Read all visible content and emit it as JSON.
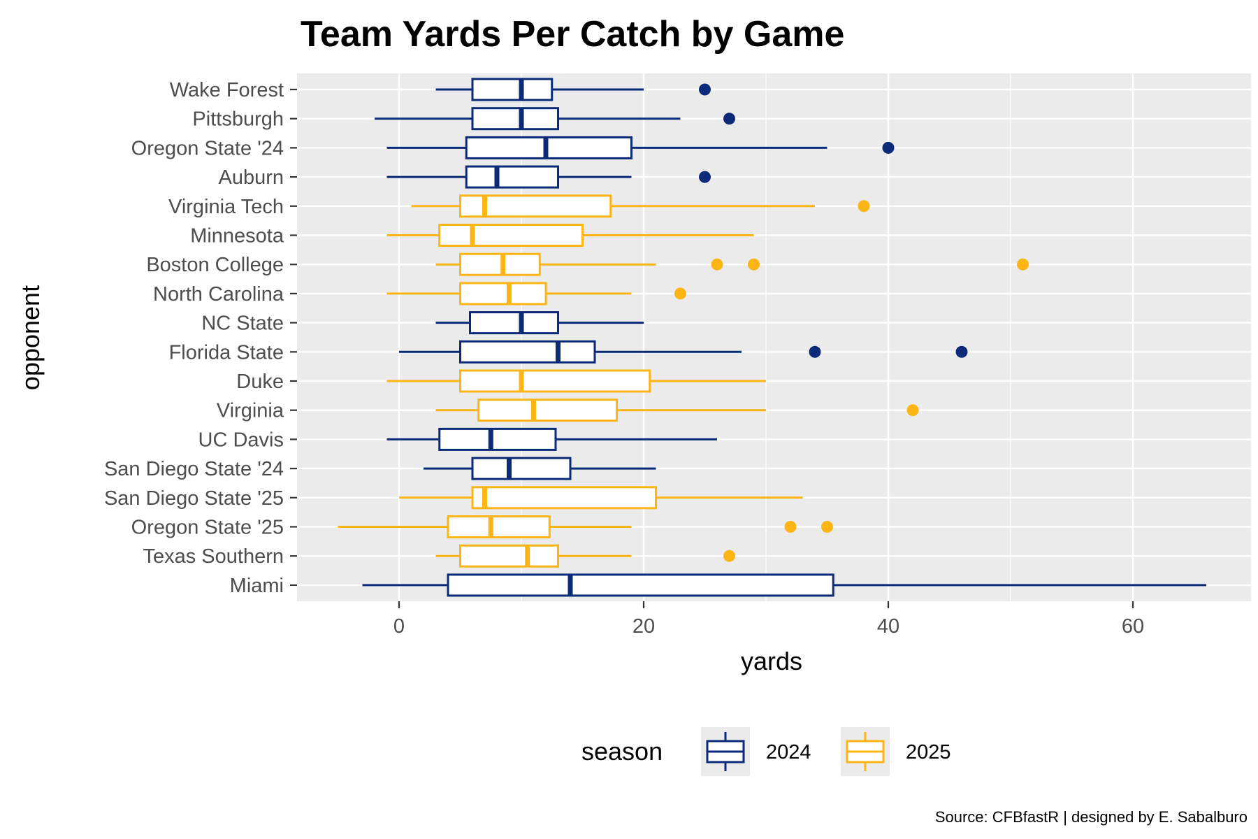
{
  "chart_data": {
    "type": "boxplot",
    "title": "Team Yards Per Catch by Game",
    "xlabel": "yards",
    "ylabel": "opponent",
    "xlim": [
      -8,
      69
    ],
    "xticks": [
      0,
      20,
      40,
      60
    ],
    "grid": true,
    "legend": {
      "title": "season",
      "position": "bottom",
      "entries": [
        {
          "name": "2024",
          "color": "#0b2a78"
        },
        {
          "name": "2025",
          "color": "#fdb515"
        }
      ]
    },
    "caption": "Source: CFBfastR | designed by E. Sabalburo",
    "boxes": [
      {
        "opponent": "Wake Forest",
        "season": "2024",
        "whisker_low": 3,
        "q1": 6,
        "median": 10,
        "q3": 12.5,
        "whisker_high": 20,
        "outliers": [
          25
        ]
      },
      {
        "opponent": "Pittsburgh",
        "season": "2024",
        "whisker_low": -2,
        "q1": 6,
        "median": 10,
        "q3": 13,
        "whisker_high": 23,
        "outliers": [
          27
        ]
      },
      {
        "opponent": "Oregon State '24",
        "season": "2024",
        "whisker_low": -1,
        "q1": 5.5,
        "median": 12,
        "q3": 19,
        "whisker_high": 35,
        "outliers": [
          40
        ]
      },
      {
        "opponent": "Auburn",
        "season": "2024",
        "whisker_low": -1,
        "q1": 5.5,
        "median": 8,
        "q3": 13,
        "whisker_high": 19,
        "outliers": [
          25
        ]
      },
      {
        "opponent": "Virginia Tech",
        "season": "2025",
        "whisker_low": 1,
        "q1": 5,
        "median": 7,
        "q3": 17.3,
        "whisker_high": 34,
        "outliers": [
          38
        ]
      },
      {
        "opponent": "Minnesota",
        "season": "2025",
        "whisker_low": -1,
        "q1": 3.3,
        "median": 6,
        "q3": 15,
        "whisker_high": 29,
        "outliers": []
      },
      {
        "opponent": "Boston College",
        "season": "2025",
        "whisker_low": 3,
        "q1": 5,
        "median": 8.5,
        "q3": 11.5,
        "whisker_high": 21,
        "outliers": [
          26,
          29,
          51
        ]
      },
      {
        "opponent": "North Carolina",
        "season": "2025",
        "whisker_low": -1,
        "q1": 5,
        "median": 9,
        "q3": 12,
        "whisker_high": 19,
        "outliers": [
          23
        ]
      },
      {
        "opponent": "NC State",
        "season": "2024",
        "whisker_low": 3,
        "q1": 5.8,
        "median": 10,
        "q3": 13,
        "whisker_high": 20,
        "outliers": []
      },
      {
        "opponent": "Florida State",
        "season": "2024",
        "whisker_low": 0,
        "q1": 5,
        "median": 13,
        "q3": 16,
        "whisker_high": 28,
        "outliers": [
          34,
          46
        ]
      },
      {
        "opponent": "Duke",
        "season": "2025",
        "whisker_low": -1,
        "q1": 5,
        "median": 10,
        "q3": 20.5,
        "whisker_high": 30,
        "outliers": []
      },
      {
        "opponent": "Virginia",
        "season": "2025",
        "whisker_low": 3,
        "q1": 6.5,
        "median": 11,
        "q3": 17.8,
        "whisker_high": 30,
        "outliers": [
          42
        ]
      },
      {
        "opponent": "UC Davis",
        "season": "2024",
        "whisker_low": -1,
        "q1": 3.3,
        "median": 7.5,
        "q3": 12.8,
        "whisker_high": 26,
        "outliers": []
      },
      {
        "opponent": "San Diego State '24",
        "season": "2024",
        "whisker_low": 2,
        "q1": 6,
        "median": 9,
        "q3": 14,
        "whisker_high": 21,
        "outliers": []
      },
      {
        "opponent": "San Diego State '25",
        "season": "2025",
        "whisker_low": 0,
        "q1": 6,
        "median": 7,
        "q3": 21,
        "whisker_high": 33,
        "outliers": []
      },
      {
        "opponent": "Oregon State '25",
        "season": "2025",
        "whisker_low": -5,
        "q1": 4,
        "median": 7.5,
        "q3": 12.3,
        "whisker_high": 19,
        "outliers": [
          32,
          35
        ]
      },
      {
        "opponent": "Texas Southern",
        "season": "2025",
        "whisker_low": 3,
        "q1": 5,
        "median": 10.5,
        "q3": 13,
        "whisker_high": 19,
        "outliers": [
          27
        ]
      },
      {
        "opponent": "Miami",
        "season": "2024",
        "whisker_low": -3,
        "q1": 4,
        "median": 14,
        "q3": 35.5,
        "whisker_high": 66,
        "outliers": []
      }
    ]
  }
}
